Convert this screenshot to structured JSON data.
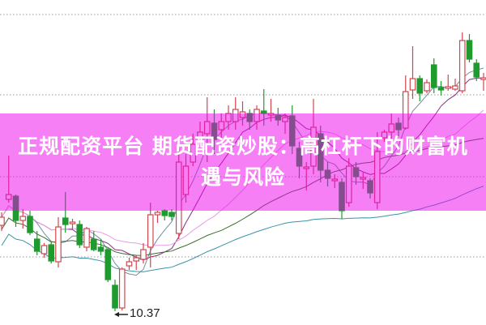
{
  "title_line1": "正规配资平台 期货配资炒股：高杠杆下的财富机",
  "title_line2": "遇与风险",
  "colors": {
    "up": "#d0464f",
    "down": "#1f9a2f",
    "banner": "#f080f0"
  },
  "chart_data": {
    "type": "candlestick",
    "title": "",
    "xlabel": "",
    "ylabel": "",
    "ylim": [
      10.2,
      14.2
    ],
    "grid": "horizontal dotted",
    "low_label": "10.37",
    "candles": [
      [
        11.43,
        11.59,
        11.36,
        11.53
      ],
      [
        11.75,
        12.29,
        11.71,
        11.81
      ],
      [
        11.79,
        11.81,
        11.41,
        11.49
      ],
      [
        11.49,
        11.63,
        11.39,
        11.54
      ],
      [
        11.54,
        11.61,
        11.31,
        11.34
      ],
      [
        11.26,
        11.36,
        11.06,
        11.11
      ],
      [
        11.08,
        11.21,
        11.03,
        11.18
      ],
      [
        11.19,
        11.23,
        10.96,
        10.99
      ],
      [
        10.98,
        11.53,
        10.91,
        11.41
      ],
      [
        11.52,
        11.84,
        11.34,
        11.44
      ],
      [
        11.45,
        11.51,
        11.38,
        11.47
      ],
      [
        11.44,
        11.49,
        11.15,
        11.19
      ],
      [
        11.16,
        11.41,
        11.11,
        11.39
      ],
      [
        11.26,
        11.36,
        11.11,
        11.13
      ],
      [
        11.16,
        11.26,
        11.06,
        11.11
      ],
      [
        11.13,
        11.16,
        10.73,
        10.76
      ],
      [
        10.69,
        10.76,
        10.37,
        10.41
      ],
      [
        10.41,
        10.91,
        10.38,
        10.89
      ],
      [
        10.93,
        11.03,
        10.88,
        10.98
      ],
      [
        10.99,
        11.06,
        10.88,
        11.03
      ],
      [
        11.01,
        11.21,
        10.96,
        11.13
      ],
      [
        11.16,
        11.71,
        10.91,
        11.56
      ],
      [
        11.56,
        11.61,
        11.46,
        11.59
      ],
      [
        11.61,
        11.63,
        11.49,
        11.55
      ],
      [
        11.59,
        11.63,
        11.49,
        11.54
      ],
      [
        11.33,
        12.38,
        11.26,
        12.21
      ],
      [
        11.81,
        12.31,
        11.71,
        12.16
      ],
      [
        12.21,
        12.56,
        12.16,
        12.43
      ],
      [
        12.51,
        12.71,
        12.41,
        12.58
      ],
      [
        12.56,
        13.01,
        12.21,
        12.71
      ],
      [
        12.69,
        12.86,
        12.31,
        12.49
      ],
      [
        12.61,
        12.81,
        12.51,
        12.71
      ],
      [
        12.71,
        12.91,
        12.61,
        12.81
      ],
      [
        12.71,
        13.01,
        12.61,
        12.86
      ],
      [
        12.76,
        12.96,
        12.66,
        12.83
      ],
      [
        12.81,
        12.86,
        12.61,
        12.71
      ],
      [
        12.71,
        12.91,
        12.61,
        12.86
      ],
      [
        12.84,
        13.11,
        12.66,
        12.81
      ],
      [
        12.79,
        12.99,
        12.71,
        12.81
      ],
      [
        12.79,
        12.88,
        12.66,
        12.73
      ],
      [
        12.71,
        12.81,
        12.56,
        12.76
      ],
      [
        12.78,
        12.91,
        12.31,
        12.41
      ],
      [
        12.38,
        12.46,
        12.01,
        12.16
      ],
      [
        12.13,
        12.21,
        11.86,
        12.15
      ],
      [
        12.16,
        12.99,
        12.06,
        12.64
      ],
      [
        12.56,
        12.66,
        11.96,
        12.11
      ],
      [
        12.11,
        12.21,
        11.91,
        12.01
      ],
      [
        11.98,
        12.06,
        11.89,
        12.0
      ],
      [
        11.96,
        12.01,
        11.51,
        11.61
      ],
      [
        11.71,
        12.26,
        11.66,
        12.16
      ],
      [
        12.14,
        12.21,
        11.93,
        12.03
      ],
      [
        12.0,
        12.08,
        11.88,
        12.02
      ],
      [
        11.98,
        12.01,
        11.76,
        11.83
      ],
      [
        11.71,
        12.58,
        11.63,
        12.34
      ],
      [
        12.51,
        12.61,
        12.46,
        12.58
      ],
      [
        12.58,
        12.81,
        12.46,
        12.68
      ],
      [
        12.69,
        12.76,
        12.53,
        12.61
      ],
      [
        12.63,
        13.28,
        12.61,
        13.08
      ],
      [
        13.1,
        13.64,
        12.99,
        13.24
      ],
      [
        13.24,
        13.28,
        12.96,
        13.06
      ],
      [
        13.09,
        13.23,
        13.06,
        13.19
      ],
      [
        13.41,
        13.49,
        13.06,
        13.13
      ],
      [
        13.13,
        13.21,
        13.03,
        13.1
      ],
      [
        13.12,
        13.29,
        13.09,
        13.14
      ],
      [
        13.11,
        13.24,
        13.09,
        13.15
      ],
      [
        13.09,
        13.81,
        13.06,
        13.71
      ],
      [
        13.71,
        13.79,
        13.44,
        13.48
      ],
      [
        13.43,
        13.48,
        13.21,
        13.26
      ],
      [
        13.23,
        13.31,
        13.09,
        13.25
      ]
    ]
  }
}
